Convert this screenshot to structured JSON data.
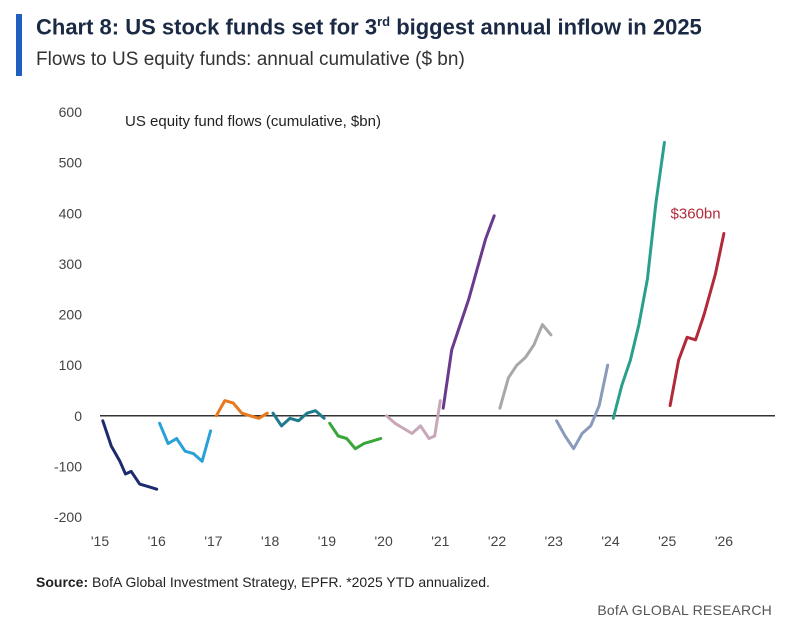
{
  "header": {
    "title_prefix": "Chart 8: US stock funds set for 3",
    "title_sup": "rd",
    "title_suffix": " biggest annual inflow in 2025",
    "subtitle": "Flows to US equity funds: annual cumulative ($ bn)"
  },
  "footer": {
    "source_label": "Source:",
    "source_text": " BofA Global Investment Strategy, EPFR. *2025 YTD annualized.",
    "brand": "BofA GLOBAL RESEARCH"
  },
  "chart_data": {
    "type": "line",
    "title": "US equity fund flows (cumulative, $bn)",
    "xlabel": "",
    "ylabel": "",
    "ylim": [
      -200,
      600
    ],
    "xlim": [
      2015,
      2026.9
    ],
    "yticks": [
      -200,
      -100,
      0,
      100,
      200,
      300,
      400,
      500,
      600
    ],
    "xticks": [
      {
        "v": 2015,
        "label": "'15"
      },
      {
        "v": 2016,
        "label": "'16"
      },
      {
        "v": 2017,
        "label": "'17"
      },
      {
        "v": 2018,
        "label": "'18"
      },
      {
        "v": 2019,
        "label": "'19"
      },
      {
        "v": 2020,
        "label": "'20"
      },
      {
        "v": 2021,
        "label": "'21"
      },
      {
        "v": 2022,
        "label": "'22"
      },
      {
        "v": 2023,
        "label": "'23"
      },
      {
        "v": 2024,
        "label": "'24"
      },
      {
        "v": 2025,
        "label": "'25"
      },
      {
        "v": 2026,
        "label": "'26"
      }
    ],
    "grid": false,
    "annotation": {
      "text": "$360bn",
      "color": "#b02a3a",
      "x": 2025.5,
      "y": 400
    },
    "series": [
      {
        "color": "#1c2b6e",
        "x": [
          2015.05,
          2015.2,
          2015.35,
          2015.45,
          2015.55,
          2015.7,
          2015.85,
          2016.0
        ],
        "y": [
          -10,
          -60,
          -90,
          -115,
          -110,
          -135,
          -140,
          -145
        ]
      },
      {
        "color": "#2aa0d8",
        "x": [
          2016.05,
          2016.2,
          2016.35,
          2016.5,
          2016.65,
          2016.8,
          2016.95
        ],
        "y": [
          -15,
          -55,
          -45,
          -70,
          -75,
          -90,
          -30
        ]
      },
      {
        "color": "#e8781e",
        "x": [
          2017.05,
          2017.2,
          2017.35,
          2017.5,
          2017.65,
          2017.8,
          2017.95
        ],
        "y": [
          0,
          30,
          25,
          5,
          0,
          -5,
          5
        ]
      },
      {
        "color": "#1e7a8c",
        "x": [
          2018.05,
          2018.2,
          2018.35,
          2018.5,
          2018.65,
          2018.8,
          2018.95
        ],
        "y": [
          5,
          -20,
          -5,
          -10,
          5,
          10,
          -5
        ]
      },
      {
        "color": "#3aa63a",
        "x": [
          2019.05,
          2019.2,
          2019.35,
          2019.5,
          2019.65,
          2019.8,
          2019.95
        ],
        "y": [
          -15,
          -40,
          -45,
          -65,
          -55,
          -50,
          -45
        ]
      },
      {
        "color": "#c8a8b8",
        "x": [
          2020.05,
          2020.2,
          2020.35,
          2020.5,
          2020.65,
          2020.8,
          2020.9,
          2021.0
        ],
        "y": [
          0,
          -15,
          -25,
          -35,
          -20,
          -45,
          -40,
          30
        ]
      },
      {
        "color": "#6a3a8c",
        "x": [
          2021.05,
          2021.2,
          2021.35,
          2021.5,
          2021.65,
          2021.8,
          2021.95
        ],
        "y": [
          15,
          130,
          180,
          230,
          290,
          350,
          395
        ]
      },
      {
        "color": "#a8a8a8",
        "x": [
          2022.05,
          2022.2,
          2022.35,
          2022.5,
          2022.65,
          2022.8,
          2022.95
        ],
        "y": [
          15,
          75,
          100,
          115,
          140,
          180,
          160
        ]
      },
      {
        "color": "#8a9abd",
        "x": [
          2023.05,
          2023.2,
          2023.35,
          2023.5,
          2023.65,
          2023.8,
          2023.95
        ],
        "y": [
          -10,
          -40,
          -65,
          -35,
          -20,
          20,
          100
        ]
      },
      {
        "color": "#2aa08c",
        "x": [
          2024.05,
          2024.2,
          2024.35,
          2024.5,
          2024.65,
          2024.8,
          2024.95
        ],
        "y": [
          -5,
          60,
          110,
          180,
          270,
          420,
          540
        ]
      },
      {
        "color": "#b02a3a",
        "x": [
          2025.05,
          2025.2,
          2025.35,
          2025.5,
          2025.65,
          2025.85,
          2026.0
        ],
        "y": [
          20,
          110,
          155,
          150,
          200,
          280,
          360
        ]
      }
    ]
  }
}
